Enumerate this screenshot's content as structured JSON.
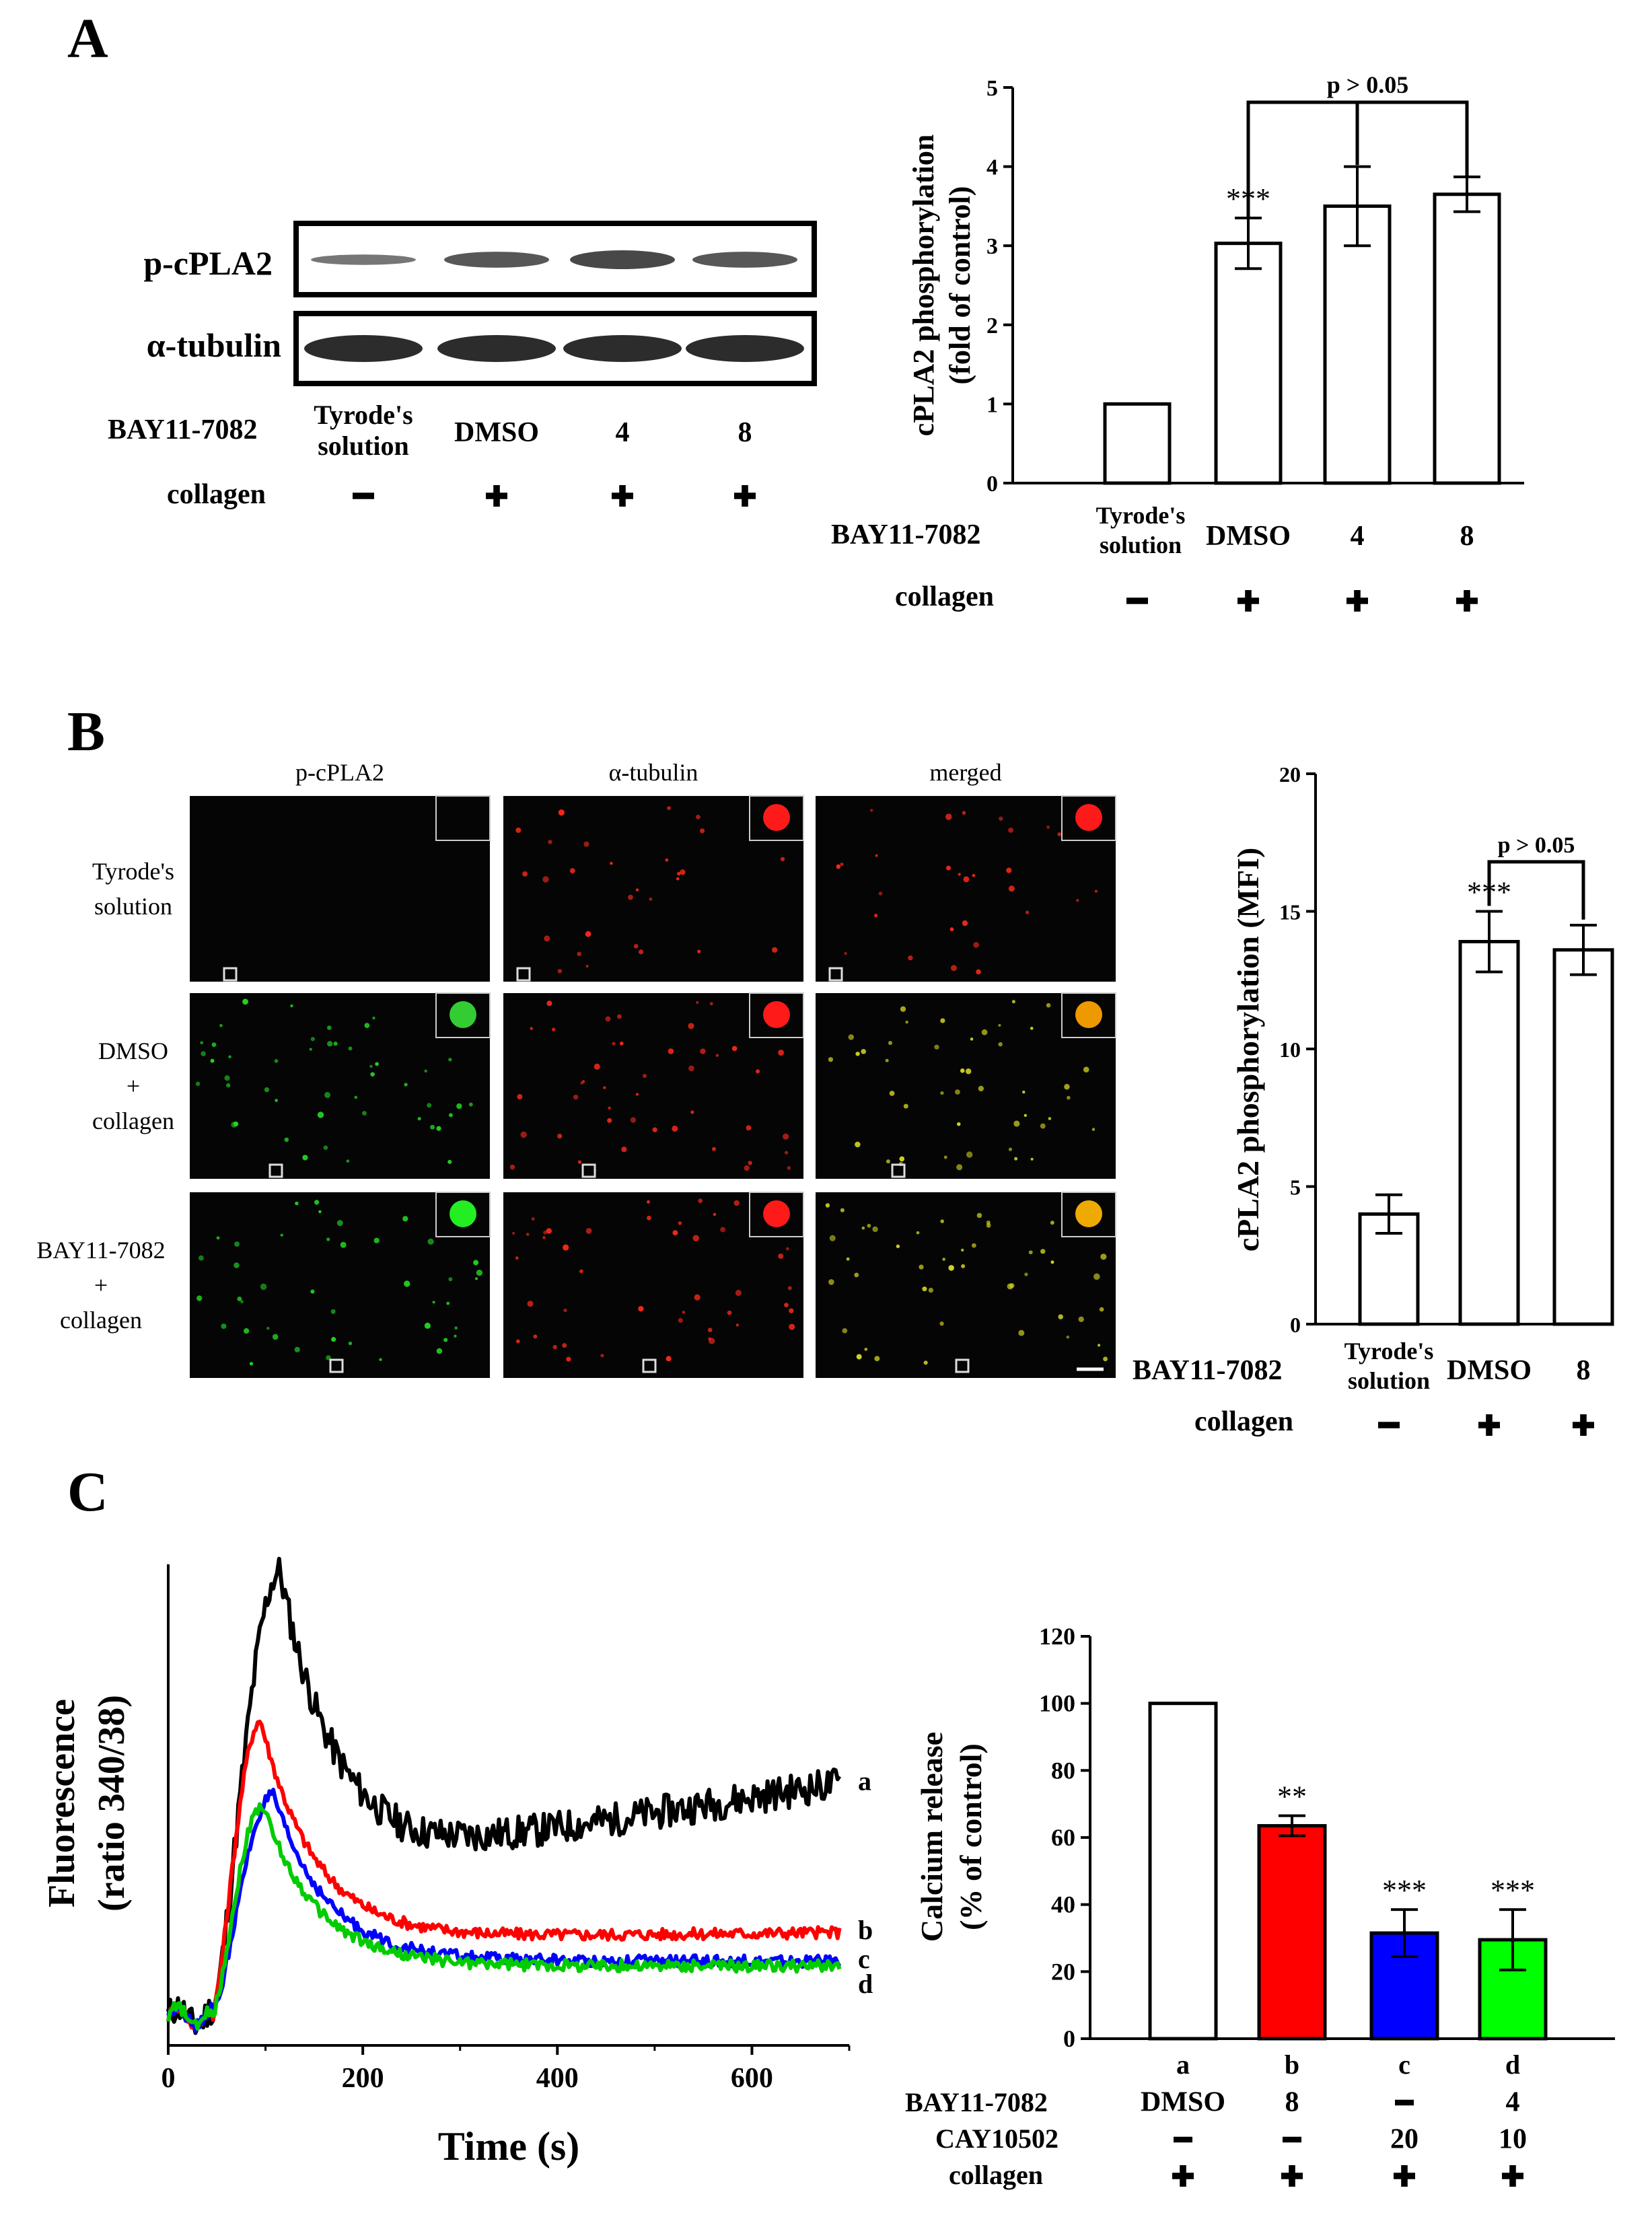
{
  "panels": {
    "a": "A",
    "b": "B",
    "c": "C"
  },
  "colors": {
    "black": "#000000",
    "red": "#ff0000",
    "blue": "#0000ff",
    "green": "#00cc00",
    "band": "#1a1a1a"
  },
  "blot": {
    "row_labels": [
      "p-cPLA2",
      "α-tubulin"
    ],
    "treatment_label": "BAY11-7082",
    "collagen_label": "collagen",
    "lanes": [
      {
        "line1": "Tyrode's",
        "line2": "solution",
        "collagen": "−"
      },
      {
        "line1": "DMSO",
        "line2": "",
        "collagen": "+"
      },
      {
        "line1": "4",
        "line2": "",
        "collagen": "+"
      },
      {
        "line1": "8",
        "line2": "",
        "collagen": "+"
      }
    ]
  },
  "microscopy": {
    "columns": [
      "p-cPLA2",
      "α-tubulin",
      "merged"
    ],
    "rows": [
      {
        "line1": "Tyrode's",
        "line2": "solution",
        "line3": ""
      },
      {
        "line1": "DMSO",
        "line2": "+",
        "line3": "collagen"
      },
      {
        "line1": "BAY11-7082",
        "line2": "+",
        "line3": "collagen"
      }
    ]
  },
  "chart_data": [
    {
      "type": "bar",
      "ylabel": "cPLA2 phosphorylation (fold of control)",
      "ylim": [
        0,
        5
      ],
      "yticks": [
        0,
        1,
        2,
        3,
        4,
        5
      ],
      "categories": [
        "Tyrode's solution",
        "DMSO",
        "4",
        "8"
      ],
      "values": [
        1.0,
        3.03,
        3.5,
        3.65
      ],
      "errors": [
        0,
        0.32,
        0.5,
        0.22
      ],
      "significance": [
        "",
        "***",
        "",
        ""
      ],
      "bracket": "p > 0.05",
      "row_labels": [
        "BAY11-7082",
        "collagen"
      ],
      "collagen": [
        "−",
        "+",
        "+",
        "+"
      ]
    },
    {
      "type": "bar",
      "ylabel": "cPLA2 phosphorylation (MFI)",
      "ylim": [
        0,
        20
      ],
      "yticks": [
        0,
        5,
        10,
        15,
        20
      ],
      "categories": [
        "Tyrode's solution",
        "DMSO",
        "8"
      ],
      "values": [
        4.0,
        13.9,
        13.6
      ],
      "errors": [
        0.7,
        1.1,
        0.9
      ],
      "significance": [
        "",
        "***",
        ""
      ],
      "bracket": "p > 0.05",
      "row_labels": [
        "BAY11-7082",
        "collagen"
      ],
      "collagen": [
        "−",
        "+",
        "+"
      ]
    },
    {
      "type": "line",
      "xlabel": "Time (s)",
      "ylabel": "Fluorescence (ratio 340/38)",
      "xlim": [
        0,
        700
      ],
      "xticks": [
        0,
        200,
        400,
        600
      ],
      "ylim": [
        0,
        1
      ],
      "yticks": [],
      "series": [
        {
          "name": "a",
          "color": "#000000",
          "peak_t": 115,
          "peak": 0.985,
          "plateau": 0.4,
          "end": 0.545,
          "noise": 0.035
        },
        {
          "name": "b",
          "color": "#ff0000",
          "peak_t": 95,
          "peak": 0.675,
          "plateau": 0.225,
          "end": 0.235,
          "noise": 0.012
        },
        {
          "name": "c",
          "color": "#0000ff",
          "peak_t": 108,
          "peak": 0.52,
          "plateau": 0.175,
          "end": 0.175,
          "noise": 0.012
        },
        {
          "name": "d",
          "color": "#00cc00",
          "peak_t": 97,
          "peak": 0.5,
          "plateau": 0.165,
          "end": 0.165,
          "noise": 0.012
        }
      ]
    },
    {
      "type": "bar",
      "ylabel": "Calcium release (% of control)",
      "ylim": [
        0,
        120
      ],
      "yticks": [
        0,
        20,
        40,
        60,
        80,
        100,
        120
      ],
      "categories": [
        "a",
        "b",
        "c",
        "d"
      ],
      "values": [
        100,
        63.5,
        31.5,
        29.5
      ],
      "errors": [
        0,
        3,
        7,
        9
      ],
      "colors": [
        "#ffffff",
        "#ff0000",
        "#0000ff",
        "#00ff00"
      ],
      "significance": [
        "",
        "**",
        "***",
        "***"
      ],
      "row_labels": [
        "BAY11-7082",
        "CAY10502",
        "collagen"
      ],
      "bay": [
        "DMSO",
        "8",
        "−",
        "4"
      ],
      "cay": [
        "−",
        "−",
        "20",
        "10"
      ],
      "collagen": [
        "+",
        "+",
        "+",
        "+"
      ]
    }
  ]
}
